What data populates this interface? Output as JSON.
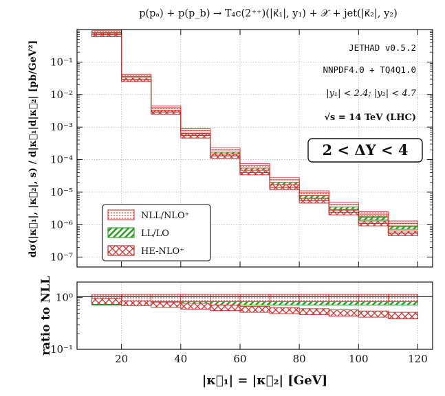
{
  "chart_data": {
    "type": "step-histogram",
    "title": "p(p_a) + p(p_b) → T_4c(2⁺⁺)(|κ₁|, y₁) + 𝒳 + jet(|κ₂|, y₂)",
    "title_display": "p(pₐ) + p(p_b) → T₄c(2⁺⁺)(|κ⃗₁|, y₁) + 𝒳 + jet(|κ⃗₂|, y₂)",
    "xlabel": "|κ⃗₁| = |κ⃗₂| [GeV]",
    "ylabel_main": "dσ(|κ⃗₁|, |κ⃗₂|, s) / d|κ⃗₁|d|κ⃗₂| [pb/GeV²]",
    "ylabel_ratio": "ratio to NLL",
    "xlim": [
      5,
      125
    ],
    "ylim_main": [
      5e-08,
      1
    ],
    "ylim_ratio": [
      0.1,
      2
    ],
    "yscale": "log",
    "grid": true,
    "x_ticks": [
      "20",
      "40",
      "60",
      "80",
      "100",
      "120"
    ],
    "y_ticks_main": [
      "10⁻⁷",
      "10⁻⁶",
      "10⁻⁵",
      "10⁻⁴",
      "10⁻³",
      "10⁻²",
      "10⁻¹"
    ],
    "y_ticks_ratio": [
      "10⁰",
      "10⁻¹"
    ],
    "bin_edges": [
      10,
      20,
      30,
      40,
      50,
      60,
      70,
      80,
      90,
      100,
      110,
      120
    ],
    "series": [
      {
        "name": "NLL/NLO⁺",
        "color": "#e8413c",
        "hatch": "dots",
        "values": [
          0.8,
          0.036,
          0.0039,
          0.00077,
          0.0002,
          6.5e-05,
          2.4e-05,
          9.5e-06,
          4.2e-06,
          2.1e-06,
          1.1e-06
        ],
        "band": [
          [
            0.68,
            0.92
          ],
          [
            0.03,
            0.042
          ],
          [
            0.0033,
            0.0045
          ],
          [
            0.00065,
            0.00089
          ],
          [
            0.00017,
            0.00023
          ],
          [
            5.5e-05,
            7.5e-05
          ],
          [
            2e-05,
            2.8e-05
          ],
          [
            8e-06,
            1.1e-05
          ],
          [
            3.5e-06,
            4.9e-06
          ],
          [
            1.8e-06,
            2.5e-06
          ],
          [
            9.2e-07,
            1.3e-06
          ]
        ],
        "ratio_band": [
          [
            0.85,
            1.15
          ],
          [
            0.84,
            1.16
          ],
          [
            0.84,
            1.16
          ],
          [
            0.84,
            1.16
          ],
          [
            0.84,
            1.16
          ],
          [
            0.84,
            1.16
          ],
          [
            0.84,
            1.16
          ],
          [
            0.84,
            1.16
          ],
          [
            0.84,
            1.16
          ],
          [
            0.84,
            1.16
          ],
          [
            0.84,
            1.16
          ]
        ]
      },
      {
        "name": "LL/LO",
        "color": "#2d9e24",
        "hatch": "diagonal",
        "values": [
          0.75,
          0.032,
          0.0035,
          0.00068,
          0.00017,
          5.5e-05,
          2e-05,
          7.8e-06,
          3.5e-06,
          1.7e-06,
          8.8e-07
        ],
        "band": [
          [
            0.62,
            0.88
          ],
          [
            0.026,
            0.038
          ],
          [
            0.0029,
            0.0041
          ],
          [
            0.00057,
            0.00079
          ],
          [
            0.00014,
            0.0002
          ],
          [
            4.6e-05,
            6.4e-05
          ],
          [
            1.6e-05,
            2.4e-05
          ],
          [
            6.5e-06,
            9.1e-06
          ],
          [
            2.9e-06,
            4.1e-06
          ],
          [
            1.4e-06,
            2e-06
          ],
          [
            7.2e-07,
            1e-06
          ]
        ],
        "ratio_band": [
          [
            0.72,
            1.0
          ],
          [
            0.72,
            0.97
          ],
          [
            0.72,
            0.96
          ],
          [
            0.72,
            0.96
          ],
          [
            0.72,
            0.96
          ],
          [
            0.72,
            0.96
          ],
          [
            0.72,
            0.96
          ],
          [
            0.72,
            0.96
          ],
          [
            0.72,
            0.96
          ],
          [
            0.72,
            0.96
          ],
          [
            0.72,
            0.96
          ]
        ]
      },
      {
        "name": "HE-NLO⁺",
        "color": "#c9302c",
        "hatch": "crosshatch",
        "values": [
          0.7,
          0.029,
          0.0029,
          0.00055,
          0.00013,
          4e-05,
          1.4e-05,
          5.5e-06,
          2.4e-06,
          1.1e-06,
          5.5e-07
        ],
        "band": [
          [
            0.6,
            0.78
          ],
          [
            0.025,
            0.033
          ],
          [
            0.0025,
            0.0033
          ],
          [
            0.00046,
            0.00063
          ],
          [
            0.00011,
            0.00015
          ],
          [
            3.4e-05,
            4.7e-05
          ],
          [
            1.2e-05,
            1.7e-05
          ],
          [
            4.6e-06,
            6.4e-06
          ],
          [
            2e-06,
            2.8e-06
          ],
          [
            9.2e-07,
            1.3e-06
          ],
          [
            4.6e-07,
            6.4e-07
          ]
        ],
        "ratio_band": [
          [
            0.74,
            0.96
          ],
          [
            0.7,
            0.86
          ],
          [
            0.65,
            0.82
          ],
          [
            0.6,
            0.78
          ],
          [
            0.56,
            0.72
          ],
          [
            0.52,
            0.68
          ],
          [
            0.49,
            0.64
          ],
          [
            0.47,
            0.61
          ],
          [
            0.44,
            0.58
          ],
          [
            0.42,
            0.55
          ],
          [
            0.39,
            0.52
          ]
        ]
      }
    ],
    "annotations": {
      "generator": "JETHAD v0.5.2",
      "pdf": "NNPDF4.0 + TQ4Q1.0",
      "rapidity_cuts": "|y₁| < 2.4;  |y₂| < 4.7",
      "energy": "√s = 14 TeV (LHC)",
      "rapidity_interval": "2 < ΔY < 4"
    },
    "legend_position": "bottom-left"
  }
}
